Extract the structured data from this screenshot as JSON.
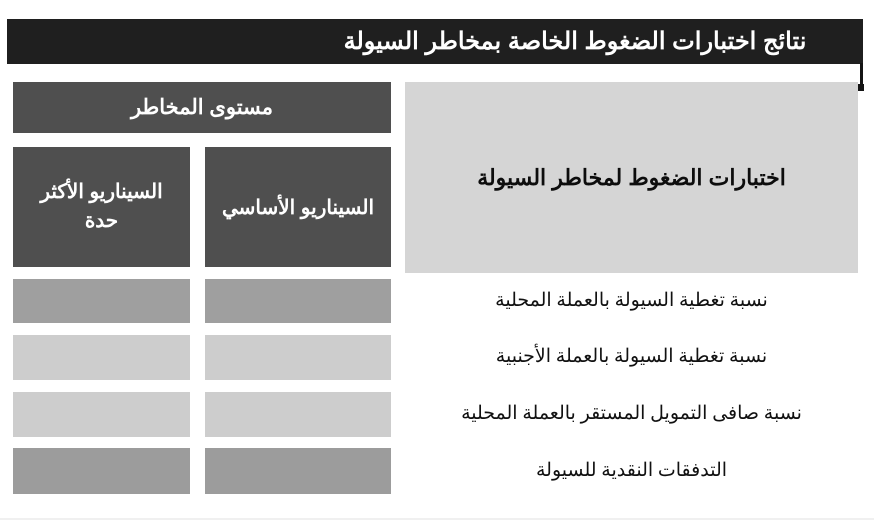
{
  "theme": {
    "title_bar_bg": "#1f1f1f",
    "title_text": "#ffffff",
    "dark_header_bg": "#4f4f4f",
    "light_header_bg": "#d5d5d5",
    "medium_cell": "#9f9f9f",
    "light_cell": "#cdcdcd",
    "page_bg": "#ffffff"
  },
  "title_bar": {
    "label": "نتائج اختبارات الضغوط الخاصة بمخاطر السيولة"
  },
  "table": {
    "risk_level_header": "مستوى المخاطر",
    "row_header": "اختبارات الضغوط لمخاطر السيولة",
    "scenario_columns": [
      {
        "id": "severe",
        "label": "السيناريو الأكثر حدة"
      },
      {
        "id": "basic",
        "label": "السيناريو الأساسي"
      }
    ],
    "rows": [
      {
        "label": "نسبة تغطية السيولة بالعملة المحلية",
        "cell_color": "#9f9f9f",
        "cells": {
          "basic": "",
          "severe": ""
        }
      },
      {
        "label": "نسبة تغطية السيولة بالعملة الأجنبية",
        "cell_color": "#cdcdcd",
        "cells": {
          "basic": "",
          "severe": ""
        }
      },
      {
        "label": "نسبة صافى التمويل المستقر بالعملة المحلية",
        "cell_color": "#cdcdcd",
        "cells": {
          "basic": "",
          "severe": ""
        }
      },
      {
        "label": "التدفقات النقدية للسيولة",
        "cell_color": "#9c9c9c",
        "cells": {
          "basic": "",
          "severe": ""
        }
      }
    ]
  }
}
